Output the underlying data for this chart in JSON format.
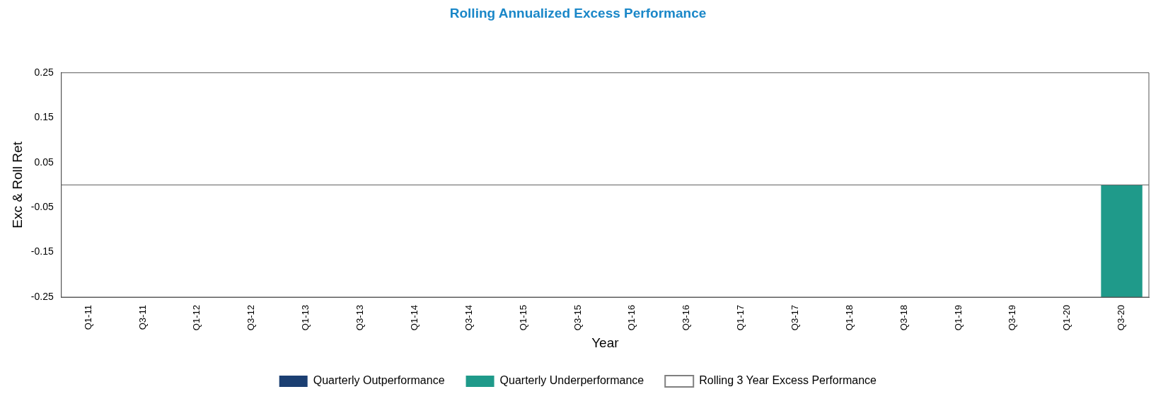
{
  "chart_data": {
    "type": "bar",
    "title": "Rolling Annualized Excess Performance",
    "xlabel": "Year",
    "ylabel": "Exc & Roll Ret",
    "categories": [
      "Q1-11",
      "Q3-11",
      "Q1-12",
      "Q3-12",
      "Q1-13",
      "Q3-13",
      "Q1-14",
      "Q3-14",
      "Q1-15",
      "Q3-15",
      "Q1-16",
      "Q3-16",
      "Q1-17",
      "Q3-17",
      "Q1-18",
      "Q3-18",
      "Q1-19",
      "Q3-19",
      "Q1-20",
      "Q3-20"
    ],
    "series": [
      {
        "name": "Quarterly Outperformance",
        "color": "#1b3f72",
        "values": [
          null,
          null,
          null,
          null,
          null,
          null,
          null,
          null,
          null,
          null,
          null,
          null,
          null,
          null,
          null,
          null,
          null,
          null,
          null,
          null
        ]
      },
      {
        "name": "Quarterly Underperformance",
        "color": "#1f9a8a",
        "values": [
          null,
          null,
          null,
          null,
          null,
          null,
          null,
          null,
          null,
          null,
          null,
          null,
          null,
          null,
          null,
          null,
          null,
          null,
          null,
          -0.25
        ]
      },
      {
        "name": "Rolling 3 Year Excess Performance",
        "type": "line",
        "color": "#808080",
        "values": [
          null,
          null,
          null,
          null,
          null,
          null,
          null,
          null,
          null,
          null,
          null,
          null,
          null,
          null,
          null,
          null,
          null,
          null,
          null,
          null
        ]
      }
    ],
    "ylim": [
      -0.25,
      0.25
    ],
    "yticks": [
      -0.25,
      -0.15,
      -0.05,
      0.05,
      0.15,
      0.25
    ],
    "ref_lines": [
      {
        "axis": "y",
        "value": 0,
        "color": "#606060"
      }
    ],
    "grid": false,
    "legend": "bottom"
  }
}
